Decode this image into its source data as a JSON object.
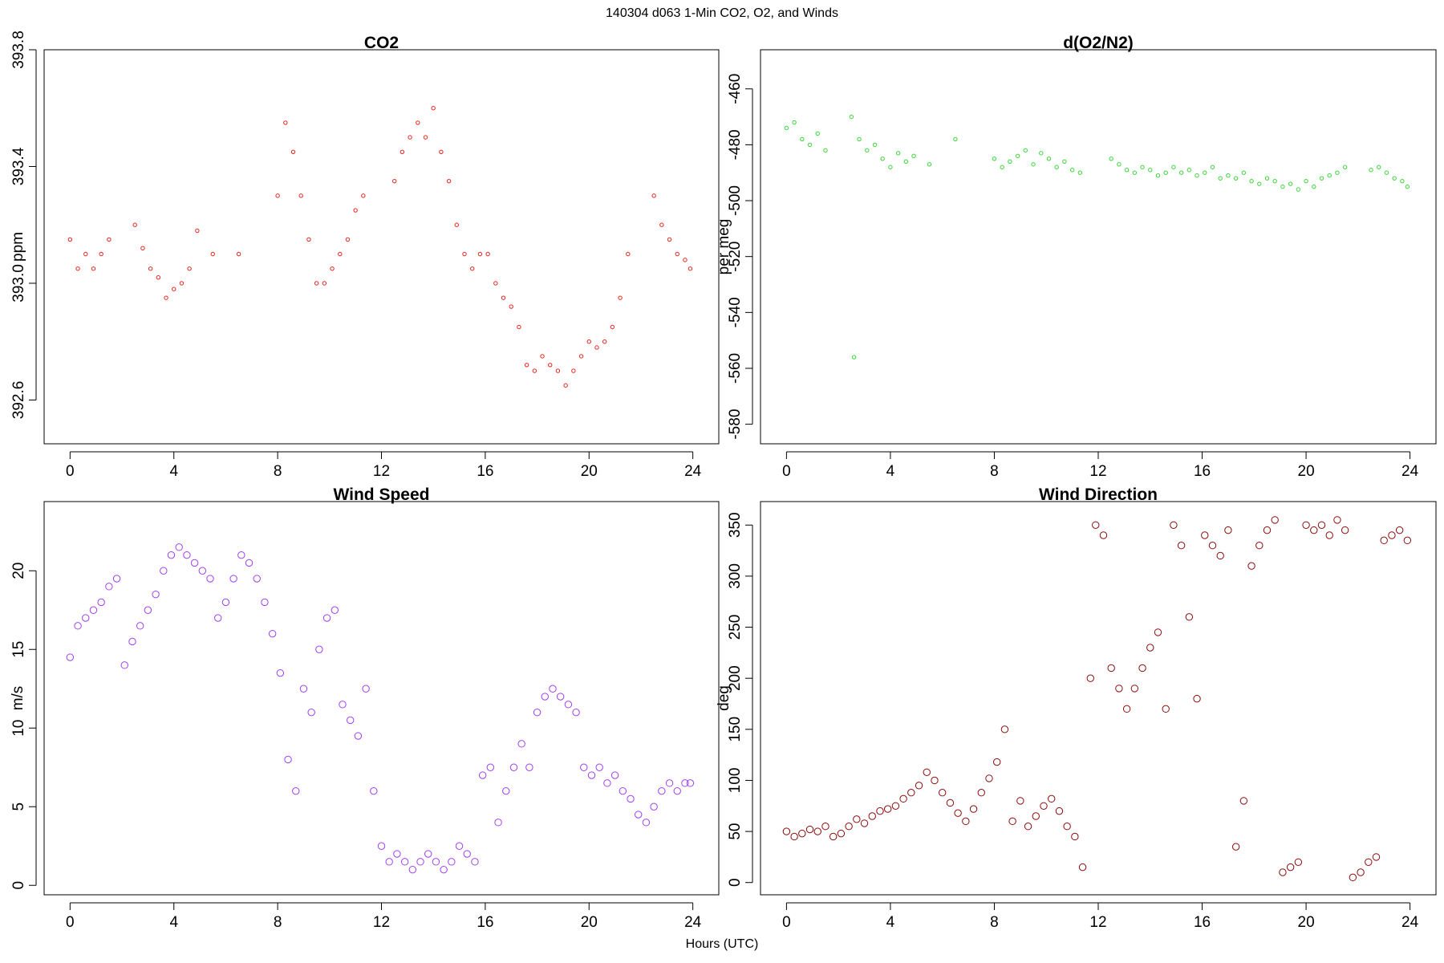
{
  "figure": {
    "title": "140304   d063   1-Min CO2, O2, and Winds",
    "xlabel": "Hours (UTC)"
  },
  "chart_data": [
    {
      "type": "scatter",
      "title": "CO2",
      "ylabel": "ppm",
      "xlim": [
        -1,
        25
      ],
      "ylim": [
        392.45,
        393.8
      ],
      "xticks": [
        0,
        4,
        8,
        12,
        16,
        20,
        24
      ],
      "yticks": [
        392.6,
        393.0,
        393.4,
        393.8
      ],
      "ytick_labels": [
        "392.6",
        "393.0",
        "393.4",
        "393.8"
      ],
      "color": "#e8231e",
      "marker_size": "small",
      "series": [
        {
          "x": [
            0.0,
            0.3,
            0.6,
            0.9,
            1.2,
            1.5,
            2.5,
            2.8,
            3.1,
            3.4,
            3.7,
            4.0,
            4.3,
            4.6,
            4.9,
            5.5,
            6.5,
            8.0,
            8.3,
            8.6,
            8.9,
            9.2,
            9.5,
            9.8,
            10.1,
            10.4,
            10.7,
            11.0,
            11.3,
            12.5,
            12.8,
            13.1,
            13.4,
            13.7,
            14.0,
            14.3,
            14.6,
            14.9,
            15.2,
            15.5,
            15.8,
            16.1,
            16.4,
            16.7,
            17.0,
            17.3,
            17.6,
            17.9,
            18.2,
            18.5,
            18.8,
            19.1,
            19.4,
            19.7,
            20.0,
            20.3,
            20.6,
            20.9,
            21.2,
            21.5,
            22.5,
            22.8,
            23.1,
            23.4,
            23.7,
            23.9
          ],
          "y": [
            393.15,
            393.05,
            393.1,
            393.05,
            393.1,
            393.15,
            393.2,
            393.12,
            393.05,
            393.02,
            392.95,
            392.98,
            393.0,
            393.05,
            393.18,
            393.1,
            393.1,
            393.3,
            393.55,
            393.45,
            393.3,
            393.15,
            393.0,
            393.0,
            393.05,
            393.1,
            393.15,
            393.25,
            393.3,
            393.35,
            393.45,
            393.5,
            393.55,
            393.5,
            393.6,
            393.45,
            393.35,
            393.2,
            393.1,
            393.05,
            393.1,
            393.1,
            393.0,
            392.95,
            392.92,
            392.85,
            392.72,
            392.7,
            392.75,
            392.72,
            392.7,
            392.65,
            392.7,
            392.75,
            392.8,
            392.78,
            392.8,
            392.85,
            392.95,
            393.1,
            393.3,
            393.2,
            393.15,
            393.1,
            393.08,
            393.05
          ]
        }
      ]
    },
    {
      "type": "scatter",
      "title": "d(O2/N2)",
      "ylabel": "per meg",
      "xlim": [
        -1,
        25
      ],
      "ylim": [
        -587,
        -446
      ],
      "xticks": [
        0,
        4,
        8,
        12,
        16,
        20,
        24
      ],
      "yticks": [
        -580,
        -560,
        -540,
        -520,
        -500,
        -480,
        -460
      ],
      "ytick_labels": [
        "-580",
        "-560",
        "-540",
        "-520",
        "-500",
        "-480",
        "-460"
      ],
      "color": "#3ad63a",
      "marker_size": "small",
      "series": [
        {
          "x": [
            0.0,
            0.3,
            0.6,
            0.9,
            1.2,
            1.5,
            2.5,
            2.6,
            2.8,
            3.1,
            3.4,
            3.7,
            4.0,
            4.3,
            4.6,
            4.9,
            5.5,
            6.5,
            8.0,
            8.3,
            8.6,
            8.9,
            9.2,
            9.5,
            9.8,
            10.1,
            10.4,
            10.7,
            11.0,
            11.3,
            12.5,
            12.8,
            13.1,
            13.4,
            13.7,
            14.0,
            14.3,
            14.6,
            14.9,
            15.2,
            15.5,
            15.8,
            16.1,
            16.4,
            16.7,
            17.0,
            17.3,
            17.6,
            17.9,
            18.2,
            18.5,
            18.8,
            19.1,
            19.4,
            19.7,
            20.0,
            20.3,
            20.6,
            20.9,
            21.2,
            21.5,
            22.5,
            22.8,
            23.1,
            23.4,
            23.7,
            23.9
          ],
          "y": [
            -474,
            -472,
            -478,
            -480,
            -476,
            -482,
            -470,
            -556,
            -478,
            -482,
            -480,
            -485,
            -488,
            -483,
            -486,
            -484,
            -487,
            -478,
            -485,
            -488,
            -486,
            -484,
            -482,
            -487,
            -483,
            -485,
            -488,
            -486,
            -489,
            -490,
            -485,
            -487,
            -489,
            -490,
            -488,
            -489,
            -491,
            -490,
            -488,
            -490,
            -489,
            -491,
            -490,
            -488,
            -492,
            -491,
            -492,
            -490,
            -493,
            -494,
            -492,
            -493,
            -495,
            -494,
            -496,
            -493,
            -495,
            -492,
            -491,
            -490,
            -488,
            -489,
            -488,
            -490,
            -492,
            -493,
            -495
          ]
        }
      ]
    },
    {
      "type": "scatter",
      "title": "Wind Speed",
      "ylabel": "m/s",
      "xlim": [
        -1,
        25
      ],
      "ylim": [
        -0.6,
        24.4
      ],
      "xticks": [
        0,
        4,
        8,
        12,
        16,
        20,
        24
      ],
      "yticks": [
        0,
        5,
        10,
        15,
        20
      ],
      "ytick_labels": [
        "0",
        "5",
        "10",
        "15",
        "20"
      ],
      "color": "#a23ef0",
      "marker_size": "large",
      "series": [
        {
          "x": [
            0.0,
            0.3,
            0.6,
            0.9,
            1.2,
            1.5,
            1.8,
            2.1,
            2.4,
            2.7,
            3.0,
            3.3,
            3.6,
            3.9,
            4.2,
            4.5,
            4.8,
            5.1,
            5.4,
            5.7,
            6.0,
            6.3,
            6.6,
            6.9,
            7.2,
            7.5,
            7.8,
            8.1,
            8.4,
            8.7,
            9.0,
            9.3,
            9.6,
            9.9,
            10.2,
            10.5,
            10.8,
            11.1,
            11.4,
            11.7,
            12.0,
            12.3,
            12.6,
            12.9,
            13.2,
            13.5,
            13.8,
            14.1,
            14.4,
            14.7,
            15.0,
            15.3,
            15.6,
            15.9,
            16.2,
            16.5,
            16.8,
            17.1,
            17.4,
            17.7,
            18.0,
            18.3,
            18.6,
            18.9,
            19.2,
            19.5,
            19.8,
            20.1,
            20.4,
            20.7,
            21.0,
            21.3,
            21.6,
            21.9,
            22.2,
            22.5,
            22.8,
            23.1,
            23.4,
            23.7,
            23.9
          ],
          "y": [
            14.5,
            16.5,
            17.0,
            17.5,
            18.0,
            19.0,
            19.5,
            14.0,
            15.5,
            16.5,
            17.5,
            18.5,
            20.0,
            21.0,
            21.5,
            21.0,
            20.5,
            20.0,
            19.5,
            17.0,
            18.0,
            19.5,
            21.0,
            20.5,
            19.5,
            18.0,
            16.0,
            13.5,
            8.0,
            6.0,
            12.5,
            11.0,
            15.0,
            17.0,
            17.5,
            11.5,
            10.5,
            9.5,
            12.5,
            6.0,
            2.5,
            1.5,
            2.0,
            1.5,
            1.0,
            1.5,
            2.0,
            1.5,
            1.0,
            1.5,
            2.5,
            2.0,
            1.5,
            7.0,
            7.5,
            4.0,
            6.0,
            7.5,
            9.0,
            7.5,
            11.0,
            12.0,
            12.5,
            12.0,
            11.5,
            11.0,
            7.5,
            7.0,
            7.5,
            6.5,
            7.0,
            6.0,
            5.5,
            4.5,
            4.0,
            5.0,
            6.0,
            6.5,
            6.0,
            6.5,
            6.5
          ]
        }
      ]
    },
    {
      "type": "scatter",
      "title": "Wind Direction",
      "ylabel": "deg",
      "xlim": [
        -1,
        25
      ],
      "ylim": [
        -12,
        373
      ],
      "xticks": [
        0,
        4,
        8,
        12,
        16,
        20,
        24
      ],
      "yticks": [
        0,
        50,
        100,
        150,
        200,
        250,
        300,
        350
      ],
      "ytick_labels": [
        "0",
        "50",
        "100",
        "150",
        "200",
        "250",
        "300",
        "350"
      ],
      "color": "#8b0a0a",
      "marker_size": "large",
      "series": [
        {
          "x": [
            0.0,
            0.3,
            0.6,
            0.9,
            1.2,
            1.5,
            1.8,
            2.1,
            2.4,
            2.7,
            3.0,
            3.3,
            3.6,
            3.9,
            4.2,
            4.5,
            4.8,
            5.1,
            5.4,
            5.7,
            6.0,
            6.3,
            6.6,
            6.9,
            7.2,
            7.5,
            7.8,
            8.1,
            8.4,
            8.7,
            9.0,
            9.3,
            9.6,
            9.9,
            10.2,
            10.5,
            10.8,
            11.1,
            11.4,
            11.7,
            11.9,
            12.2,
            12.5,
            12.8,
            13.1,
            13.4,
            13.7,
            14.0,
            14.3,
            14.6,
            14.9,
            15.2,
            15.5,
            15.8,
            16.1,
            16.4,
            16.7,
            17.0,
            17.3,
            17.6,
            17.9,
            18.2,
            18.5,
            18.8,
            19.1,
            19.4,
            19.7,
            20.0,
            20.3,
            20.6,
            20.9,
            21.2,
            21.5,
            21.8,
            22.1,
            22.4,
            22.7,
            23.0,
            23.3,
            23.6,
            23.9
          ],
          "y": [
            50,
            45,
            48,
            52,
            50,
            55,
            45,
            48,
            55,
            62,
            58,
            65,
            70,
            72,
            75,
            82,
            88,
            95,
            108,
            100,
            88,
            78,
            68,
            60,
            72,
            88,
            102,
            118,
            150,
            60,
            80,
            55,
            65,
            75,
            82,
            70,
            55,
            45,
            15,
            200,
            350,
            340,
            210,
            190,
            170,
            190,
            210,
            230,
            245,
            170,
            350,
            330,
            260,
            180,
            340,
            330,
            320,
            345,
            35,
            80,
            310,
            330,
            345,
            355,
            10,
            15,
            20,
            350,
            345,
            350,
            340,
            355,
            345,
            5,
            10,
            20,
            25,
            335,
            340,
            345,
            335
          ]
        }
      ]
    }
  ]
}
